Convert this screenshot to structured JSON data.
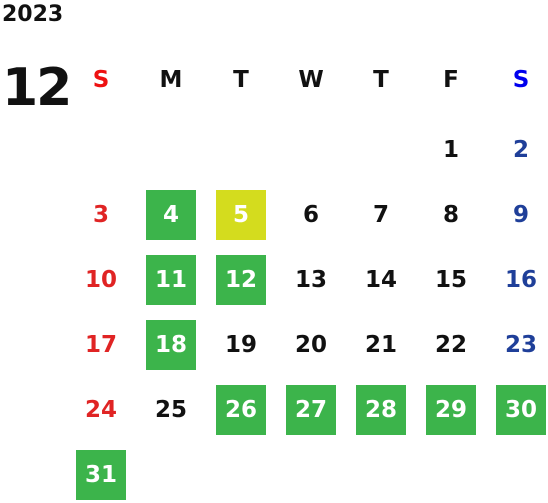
{
  "year": "2023",
  "month": "12",
  "weekdays": [
    {
      "label": "S",
      "color": "#ee1111"
    },
    {
      "label": "M",
      "color": "#111111"
    },
    {
      "label": "T",
      "color": "#111111"
    },
    {
      "label": "W",
      "color": "#111111"
    },
    {
      "label": "T",
      "color": "#111111"
    },
    {
      "label": "F",
      "color": "#111111"
    },
    {
      "label": "S",
      "color": "#0000ee"
    }
  ],
  "day_colors": [
    "#e02424",
    "#111111",
    "#111111",
    "#111111",
    "#111111",
    "#111111",
    "#1f3f99"
  ],
  "weeks": [
    [
      null,
      null,
      null,
      null,
      null,
      {
        "day": 1
      },
      {
        "day": 2
      }
    ],
    [
      {
        "day": 3
      },
      {
        "day": 4,
        "fill": "#3cb44b"
      },
      {
        "day": 5,
        "fill": "#d4dc1e"
      },
      {
        "day": 6
      },
      {
        "day": 7
      },
      {
        "day": 8
      },
      {
        "day": 9
      }
    ],
    [
      {
        "day": 10
      },
      {
        "day": 11,
        "fill": "#3cb44b"
      },
      {
        "day": 12,
        "fill": "#3cb44b"
      },
      {
        "day": 13
      },
      {
        "day": 14
      },
      {
        "day": 15
      },
      {
        "day": 16
      }
    ],
    [
      {
        "day": 17
      },
      {
        "day": 18,
        "fill": "#3cb44b"
      },
      {
        "day": 19
      },
      {
        "day": 20
      },
      {
        "day": 21
      },
      {
        "day": 22
      },
      {
        "day": 23
      }
    ],
    [
      {
        "day": 24
      },
      {
        "day": 25
      },
      {
        "day": 26,
        "fill": "#3cb44b"
      },
      {
        "day": 27,
        "fill": "#3cb44b"
      },
      {
        "day": 28,
        "fill": "#3cb44b"
      },
      {
        "day": 29,
        "fill": "#3cb44b"
      },
      {
        "day": 30,
        "fill": "#3cb44b"
      }
    ],
    [
      {
        "day": 31,
        "fill": "#3cb44b"
      },
      null,
      null,
      null,
      null,
      null,
      null
    ]
  ]
}
